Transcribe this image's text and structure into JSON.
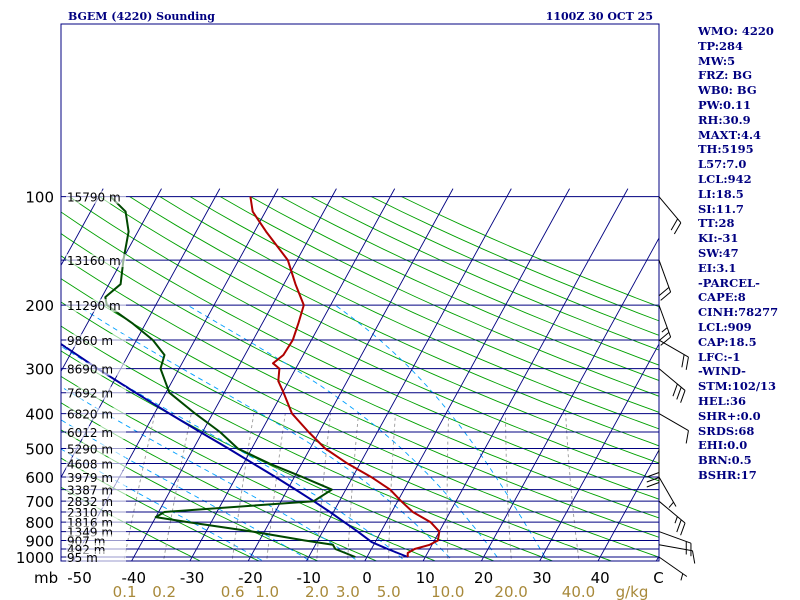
{
  "chart_data": {
    "type": "skew-t",
    "title": "BGEM (4220) Sounding",
    "valid_time": "1100Z 30 OCT 25",
    "pressure_unit": "mb",
    "mixing_ratio_unit": "g/kg",
    "pressure_levels": [
      100,
      200,
      300,
      400,
      500,
      600,
      700,
      800,
      900,
      1000
    ],
    "pressure_labels": [
      "100",
      "200",
      "300",
      "400",
      "500",
      "600",
      "700",
      "800",
      "900",
      "1000"
    ],
    "height_levels": [
      {
        "p": 100,
        "label": "15790 m"
      },
      {
        "p": 150,
        "label": "13160 m"
      },
      {
        "p": 200,
        "label": "11290 m"
      },
      {
        "p": 250,
        "label": "9860 m"
      },
      {
        "p": 300,
        "label": "8690 m"
      },
      {
        "p": 350,
        "label": "7692 m"
      },
      {
        "p": 400,
        "label": "6820 m"
      },
      {
        "p": 450,
        "label": "6012 m"
      },
      {
        "p": 500,
        "label": "5290 m"
      },
      {
        "p": 550,
        "label": "4608 m"
      },
      {
        "p": 600,
        "label": "3979 m"
      },
      {
        "p": 650,
        "label": "3387 m"
      },
      {
        "p": 700,
        "label": "2832 m"
      },
      {
        "p": 750,
        "label": "2310 m"
      },
      {
        "p": 800,
        "label": "1816 m"
      },
      {
        "p": 850,
        "label": "1349 m"
      },
      {
        "p": 900,
        "label": "907 m"
      },
      {
        "p": 950,
        "label": "492 m"
      },
      {
        "p": 1000,
        "label": "95 m"
      }
    ],
    "temperature_ticks": [
      {
        "t": -50,
        "label": "-50"
      },
      {
        "t": -40,
        "label": "-40"
      },
      {
        "t": -30,
        "label": "-30"
      },
      {
        "t": -20,
        "label": "-20"
      },
      {
        "t": -10,
        "label": "-10"
      },
      {
        "t": 0,
        "label": "0"
      },
      {
        "t": 10,
        "label": "10"
      },
      {
        "t": 20,
        "label": "20"
      },
      {
        "t": 30,
        "label": "30"
      },
      {
        "t": 40,
        "label": "40"
      },
      {
        "t": 50,
        "label": "C"
      }
    ],
    "mixing_ratio_lines": [
      0.1,
      0.2,
      0.6,
      1.0,
      2.0,
      3.0,
      5.0,
      10.0,
      20.0,
      40.0
    ],
    "mixing_ratio_labels": [
      "0.1",
      "0.2",
      "0.6",
      "1.0",
      "2.0",
      "3.0",
      "5.0",
      "10.0",
      "20.0",
      "40.0"
    ],
    "temperature_profile": [
      {
        "p": 1000,
        "t": 7.0
      },
      {
        "p": 975,
        "t": 6.6
      },
      {
        "p": 950,
        "t": 7.4
      },
      {
        "p": 925,
        "t": 9.6
      },
      {
        "p": 900,
        "t": 10.6
      },
      {
        "p": 850,
        "t": 10.0
      },
      {
        "p": 800,
        "t": 7.6
      },
      {
        "p": 750,
        "t": 3.6
      },
      {
        "p": 700,
        "t": 0.6
      },
      {
        "p": 650,
        "t": -2.4
      },
      {
        "p": 600,
        "t": -6.8
      },
      {
        "p": 550,
        "t": -12.2
      },
      {
        "p": 500,
        "t": -17.4
      },
      {
        "p": 450,
        "t": -21.8
      },
      {
        "p": 400,
        "t": -26.4
      },
      {
        "p": 350,
        "t": -29.8
      },
      {
        "p": 325,
        "t": -31.8
      },
      {
        "p": 300,
        "t": -32.8
      },
      {
        "p": 290,
        "t": -34.4
      },
      {
        "p": 275,
        "t": -33.4
      },
      {
        "p": 250,
        "t": -33.2
      },
      {
        "p": 225,
        "t": -33.8
      },
      {
        "p": 200,
        "t": -34.6
      },
      {
        "p": 175,
        "t": -38.0
      },
      {
        "p": 150,
        "t": -41.6
      },
      {
        "p": 125,
        "t": -48.0
      },
      {
        "p": 110,
        "t": -52.2
      },
      {
        "p": 100,
        "t": -54.0
      }
    ],
    "dewpoint_profile": [
      {
        "p": 1000,
        "t": -2.0
      },
      {
        "p": 950,
        "t": -6.2
      },
      {
        "p": 925,
        "t": -7.0
      },
      {
        "p": 900,
        "t": -12.2
      },
      {
        "p": 850,
        "t": -22.0
      },
      {
        "p": 800,
        "t": -34.0
      },
      {
        "p": 775,
        "t": -40.0
      },
      {
        "p": 750,
        "t": -39.0
      },
      {
        "p": 700,
        "t": -14.4
      },
      {
        "p": 650,
        "t": -12.4
      },
      {
        "p": 600,
        "t": -18.6
      },
      {
        "p": 550,
        "t": -25.6
      },
      {
        "p": 500,
        "t": -32.4
      },
      {
        "p": 450,
        "t": -37.0
      },
      {
        "p": 400,
        "t": -43.0
      },
      {
        "p": 350,
        "t": -49.4
      },
      {
        "p": 300,
        "t": -53.2
      },
      {
        "p": 275,
        "t": -53.8
      },
      {
        "p": 250,
        "t": -57.2
      },
      {
        "p": 225,
        "t": -62.2
      },
      {
        "p": 200,
        "t": -68.4
      },
      {
        "p": 190,
        "t": -69.4
      },
      {
        "p": 175,
        "t": -68.0
      },
      {
        "p": 150,
        "t": -69.8
      },
      {
        "p": 125,
        "t": -71.6
      },
      {
        "p": 110,
        "t": -74.0
      },
      {
        "p": 100,
        "t": -78.0
      }
    ],
    "parcel_path": [
      {
        "p": 1000,
        "t": 7.0
      },
      {
        "p": 950,
        "t": 2.8
      },
      {
        "p": 909,
        "t": -0.6
      },
      {
        "p": 850,
        "t": -4.0
      },
      {
        "p": 800,
        "t": -7.2
      },
      {
        "p": 750,
        "t": -10.6
      },
      {
        "p": 700,
        "t": -14.4
      },
      {
        "p": 650,
        "t": -18.6
      },
      {
        "p": 600,
        "t": -23.2
      },
      {
        "p": 550,
        "t": -28.4
      },
      {
        "p": 500,
        "t": -34.0
      },
      {
        "p": 450,
        "t": -40.4
      },
      {
        "p": 400,
        "t": -47.4
      },
      {
        "p": 350,
        "t": -55.2
      },
      {
        "p": 300,
        "t": -64.0
      },
      {
        "p": 250,
        "t": -74.0
      },
      {
        "p": 200,
        "t": -85.6
      },
      {
        "p": 150,
        "t": -99.0
      },
      {
        "p": 100,
        "t": -116.0
      }
    ],
    "wind_barbs": [
      {
        "p": 1000,
        "dir": 125,
        "spd": 5
      },
      {
        "p": 925,
        "dir": 100,
        "spd": 10
      },
      {
        "p": 850,
        "dir": 110,
        "spd": 20
      },
      {
        "p": 700,
        "dir": 130,
        "spd": 25
      },
      {
        "p": 600,
        "dir": 150,
        "spd": 5
      },
      {
        "p": 500,
        "dir": 180,
        "spd": 30
      },
      {
        "p": 400,
        "dir": 120,
        "spd": 10
      },
      {
        "p": 300,
        "dir": 130,
        "spd": 30
      },
      {
        "p": 250,
        "dir": 120,
        "spd": 20
      },
      {
        "p": 200,
        "dir": 160,
        "spd": 25
      },
      {
        "p": 150,
        "dir": 160,
        "spd": 20
      },
      {
        "p": 100,
        "dir": 140,
        "spd": 20
      }
    ],
    "colors": {
      "isobar": "#000080",
      "isotherm": "#000080",
      "dry_adiabat": "#00a000",
      "mixing_ratio": "#9a9a9a",
      "temperature": "#b00000",
      "dewpoint": "#004800",
      "parcel": "#0000a0",
      "moist_adiabat": "#00a0ff",
      "mixing_label": "#a8893a"
    }
  },
  "indices": [
    "WMO: 4220",
    "TP:284",
    "MW:5",
    "FRZ: BG",
    "WB0: BG",
    "PW:0.11",
    "RH:30.9",
    "MAXT:4.4",
    "TH:5195",
    "L57:7.0",
    "LCL:942",
    "LI:18.5",
    "SI:11.7",
    "TT:28",
    "KI:-31",
    "SW:47",
    "EI:3.1",
    "-PARCEL-",
    "CAPE:8",
    "CINH:78277",
    "LCL:909",
    "CAP:18.5",
    "LFC:-1",
    "-WIND-",
    "STM:102/13",
    "HEL:36",
    "SHR+:0.0",
    "SRDS:68",
    "EHI:0.0",
    "BRN:0.5",
    "BSHR:17"
  ]
}
